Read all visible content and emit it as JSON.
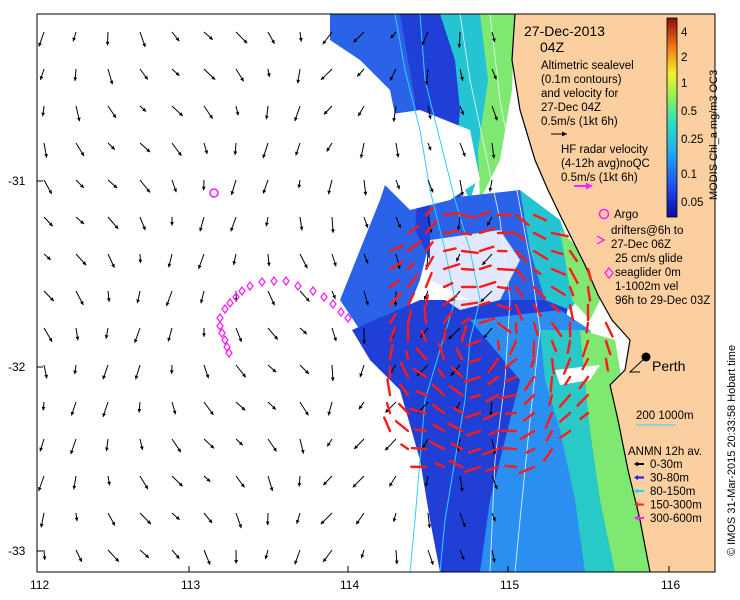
{
  "map": {
    "date": "27-Dec-2013",
    "time": "04Z",
    "x_ticks": [
      "112",
      "113",
      "114",
      "115",
      "116"
    ],
    "y_ticks": [
      "-31",
      "-32",
      "-33"
    ],
    "city": "Perth",
    "colorbar": {
      "label": "MODIS Chl_a mg/m3 OC3",
      "ticks": [
        "4",
        "2",
        "1",
        "0.5",
        "0.25",
        "0.1",
        "0.05"
      ]
    },
    "legend": {
      "altimetry": [
        "Altimetric sealevel",
        "(0.1m contours)",
        "and velocity for",
        "27-Dec 04Z",
        "0.5m/s (1kt 6h)"
      ],
      "hf_radar": [
        "HF radar velocity",
        "(4-12h avg)noQC",
        "0.5m/s (1kt 6h)"
      ],
      "argo": "Argo",
      "drifters": [
        "drifters@6h to",
        "27-Dec 06Z"
      ],
      "glider": [
        "25 cm/s glide",
        "seaglider 0m",
        "1-1002m vel",
        "96h to 29-Dec 03Z"
      ],
      "isobaths": "200  1000m",
      "anmn_title": "ANMN 12h av.",
      "anmn_items": [
        {
          "label": "0-30m",
          "color": "#000000"
        },
        {
          "label": "30-80m",
          "color": "#1a1aff"
        },
        {
          "label": "80-150m",
          "color": "#00e5ff"
        },
        {
          "label": "150-300m",
          "color": "#ff2222"
        },
        {
          "label": "300-600m",
          "color": "#ff22ff"
        }
      ]
    },
    "footer": "© IMOS 31-Mar-2015 20:33:58 Hobart time",
    "colors": {
      "land": "#fbcf9f",
      "hf_arrow": "#ff1a1a",
      "glider": "#ff22ff",
      "isobath": "#33ccff",
      "ocean": "#ffffff"
    }
  }
}
